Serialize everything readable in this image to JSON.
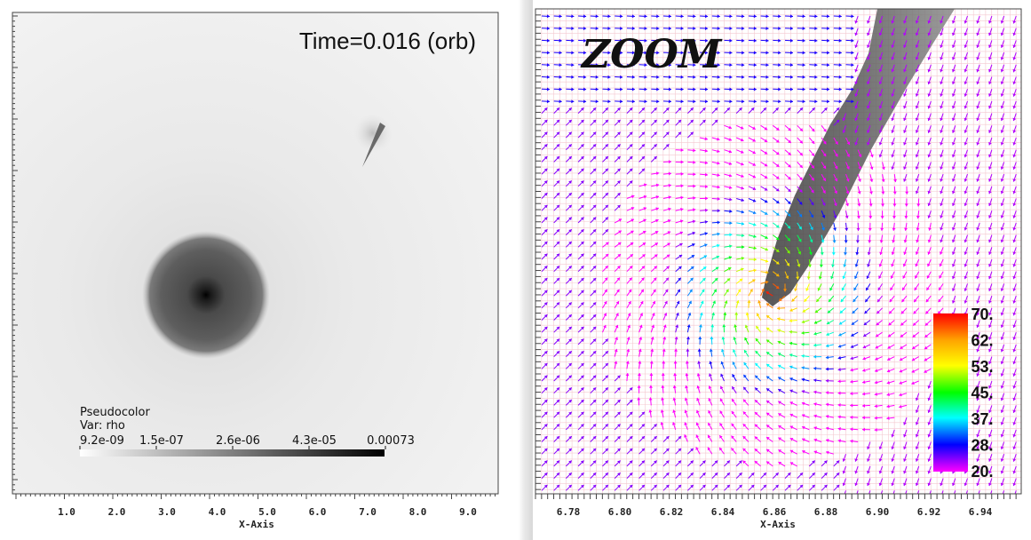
{
  "left_plot": {
    "time_label": "Time=0.016 (orb)",
    "legend_title": "Pseudocolor",
    "legend_var": "Var: rho",
    "legend_ticks": [
      "9.2e-09",
      "1.5e-07",
      "2.6e-06",
      "4.3e-05",
      "0.00073"
    ],
    "x_axis_label": "X-Axis",
    "x_ticks": [
      "1.0",
      "2.0",
      "3.0",
      "4.0",
      "5.0",
      "6.0",
      "7.0",
      "8.0",
      "9.0"
    ]
  },
  "right_plot": {
    "title": "ZOOM",
    "x_axis_label": "X-Axis",
    "x_ticks": [
      "6.78",
      "6.80",
      "6.82",
      "6.84",
      "6.86",
      "6.88",
      "6.90",
      "6.92",
      "6.94"
    ],
    "colorbar_ticks": [
      "70.",
      "62.",
      "53.",
      "45.",
      "37.",
      "28.",
      "20."
    ]
  },
  "colors": {
    "vector_low": "#ff00ff",
    "vector_mid": "#00ff00",
    "vector_high": "#ff0000",
    "grid": "#f4c8d0"
  }
}
